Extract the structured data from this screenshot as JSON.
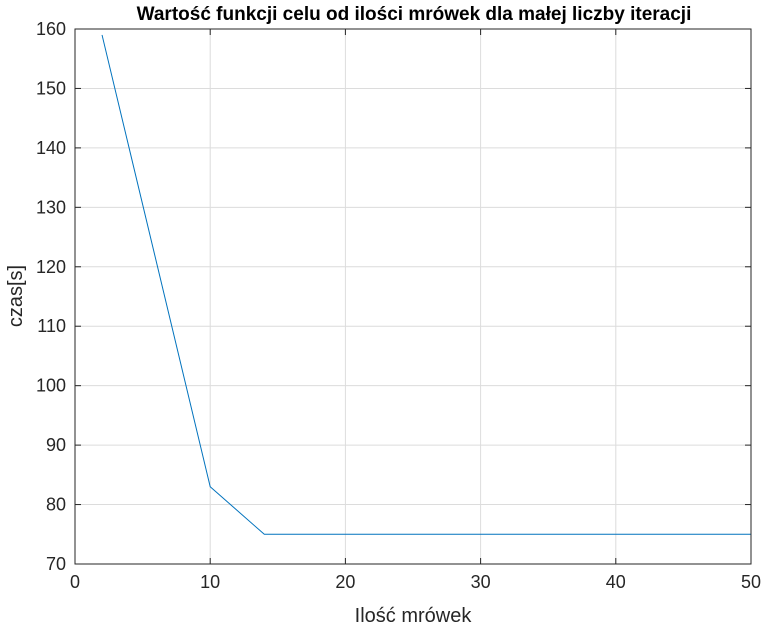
{
  "chart_data": {
    "type": "line",
    "title": "Wartość funkcji celu od ilości mrówek dla małej liczby iteracji",
    "xlabel": "Ilość mrówek",
    "ylabel": "czas[s]",
    "xlim": [
      0,
      50
    ],
    "ylim": [
      70,
      160
    ],
    "xticks": [
      0,
      10,
      20,
      30,
      40,
      50
    ],
    "yticks": [
      70,
      80,
      90,
      100,
      110,
      120,
      130,
      140,
      150,
      160
    ],
    "grid": true,
    "series": [
      {
        "color": "#0072bd",
        "x": [
          2,
          10,
          14,
          50
        ],
        "y": [
          159,
          83,
          75,
          75
        ]
      }
    ]
  }
}
